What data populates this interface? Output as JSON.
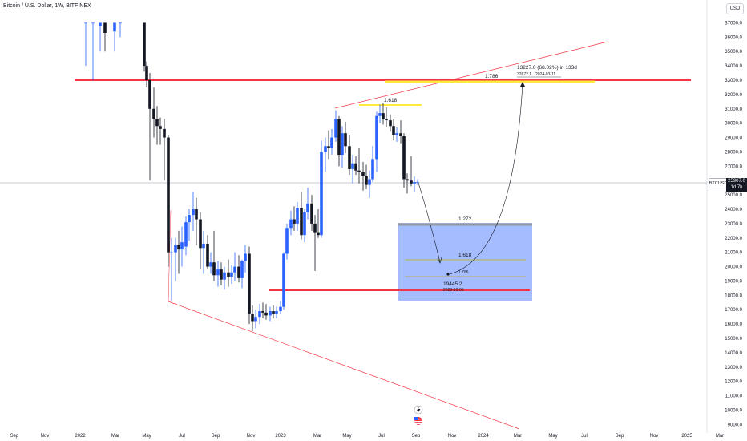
{
  "header": {
    "title": "Bitcoin / U.S. Dollar, 1W, BITFINEX",
    "currency_button": "USD"
  },
  "price_axis": {
    "ticks": [
      37000,
      36000,
      35000,
      34000,
      33000,
      32000,
      31000,
      30000,
      29000,
      28000,
      27000,
      26000,
      25000,
      24000,
      23000,
      22000,
      21000,
      20000,
      19000,
      18000,
      17000,
      16000,
      15000,
      14000,
      13000,
      12000,
      11000,
      10000,
      9000
    ],
    "symbol_tag": "BTCUSD",
    "last_price": "25907.0",
    "countdown": "1d 7h"
  },
  "time_axis": {
    "labels": [
      "Sep",
      "Nov",
      "2022",
      "Mar",
      "May",
      "Jul",
      "Sep",
      "Nov",
      "2023",
      "Mar",
      "May",
      "Jul",
      "Sep",
      "Nov",
      "2024",
      "Mar",
      "May",
      "Jul",
      "Sep",
      "Nov",
      "2025",
      "Mar"
    ]
  },
  "annotations": {
    "fib_1786": "1.786",
    "fib_1618_top": "1.618",
    "fib_1272": "1.272",
    "fib_1618_box": "1.618",
    "fib_1786_box": "1.786",
    "projection_main": "13227.0 (68.02%) in 133d",
    "projection_target": "32672.1",
    "projection_date": "2024-03-11",
    "low_value": "19445.2",
    "low_date": "2023-10-09"
  },
  "colors": {
    "up": "#2962ff",
    "down": "#131722",
    "resistance": "#f23645",
    "channel": "#f23645",
    "fib_yellow": "#ffeb3b",
    "box_fill": "#2962ff",
    "fib_olive": "#b5b54a"
  },
  "chart_data": {
    "type": "candlestick",
    "symbol": "BTCUSD",
    "interval": "1W",
    "exchange": "BITFINEX",
    "ylim": [
      9000,
      37000
    ],
    "x_ticks": [
      "Sep",
      "Nov",
      "2022",
      "Mar",
      "May",
      "Jul",
      "Sep",
      "Nov",
      "2023",
      "Mar",
      "May",
      "Jul",
      "Sep",
      "Nov",
      "2024",
      "Mar",
      "May",
      "Jul",
      "Sep",
      "Nov",
      "2025",
      "Mar"
    ],
    "last_price": 25907.0,
    "candles": [
      {
        "x": 107,
        "o": 37000,
        "h": 37000,
        "l": 34000,
        "c": 37000
      },
      {
        "x": 116,
        "o": 37000,
        "h": 37000,
        "l": 33000,
        "c": 37000
      },
      {
        "x": 125,
        "o": 36800,
        "h": 37000,
        "l": 35000,
        "c": 37000
      },
      {
        "x": 131,
        "o": 37000,
        "h": 37000,
        "l": 35000,
        "c": 36300
      },
      {
        "x": 143,
        "o": 36400,
        "h": 37000,
        "l": 35000,
        "c": 37000
      },
      {
        "x": 150,
        "o": 37000,
        "h": 37000,
        "l": 36000,
        "c": 37000
      },
      {
        "x": 180,
        "o": 37000,
        "h": 37000,
        "l": 33600,
        "c": 34000
      },
      {
        "x": 183,
        "o": 34000,
        "h": 34300,
        "l": 32500,
        "c": 33000
      },
      {
        "x": 187,
        "o": 33000,
        "h": 33500,
        "l": 26000,
        "c": 31000
      },
      {
        "x": 192,
        "o": 31000,
        "h": 32500,
        "l": 29000,
        "c": 30300
      },
      {
        "x": 196,
        "o": 30300,
        "h": 31200,
        "l": 28500,
        "c": 29800
      },
      {
        "x": 200,
        "o": 29800,
        "h": 30400,
        "l": 28500,
        "c": 29600
      },
      {
        "x": 205,
        "o": 29600,
        "h": 30300,
        "l": 26000,
        "c": 29000
      },
      {
        "x": 210,
        "o": 29000,
        "h": 29200,
        "l": 20000,
        "c": 21000
      },
      {
        "x": 214,
        "o": 21000,
        "h": 22000,
        "l": 17600,
        "c": 21000
      },
      {
        "x": 219,
        "o": 21000,
        "h": 22000,
        "l": 19000,
        "c": 21500
      },
      {
        "x": 223,
        "o": 21500,
        "h": 22500,
        "l": 19500,
        "c": 21200
      },
      {
        "x": 227,
        "o": 21200,
        "h": 22800,
        "l": 20000,
        "c": 21700
      },
      {
        "x": 232,
        "o": 21400,
        "h": 23500,
        "l": 20800,
        "c": 23100
      },
      {
        "x": 236,
        "o": 23100,
        "h": 24000,
        "l": 21800,
        "c": 23600
      },
      {
        "x": 241,
        "o": 23600,
        "h": 25200,
        "l": 22500,
        "c": 24000
      },
      {
        "x": 245,
        "o": 24000,
        "h": 24800,
        "l": 21500,
        "c": 23300
      },
      {
        "x": 250,
        "o": 23300,
        "h": 23800,
        "l": 19800,
        "c": 21300
      },
      {
        "x": 254,
        "o": 21300,
        "h": 22500,
        "l": 19500,
        "c": 21600
      },
      {
        "x": 259,
        "o": 21600,
        "h": 22200,
        "l": 19800,
        "c": 20000
      },
      {
        "x": 263,
        "o": 20000,
        "h": 21000,
        "l": 19500,
        "c": 20300
      },
      {
        "x": 267,
        "o": 20300,
        "h": 22500,
        "l": 19000,
        "c": 19400
      },
      {
        "x": 272,
        "o": 19400,
        "h": 20400,
        "l": 18600,
        "c": 19800
      },
      {
        "x": 276,
        "o": 19800,
        "h": 20300,
        "l": 18700,
        "c": 19100
      },
      {
        "x": 280,
        "o": 19100,
        "h": 20000,
        "l": 18400,
        "c": 19600
      },
      {
        "x": 285,
        "o": 19600,
        "h": 20500,
        "l": 18600,
        "c": 19300
      },
      {
        "x": 289,
        "o": 19300,
        "h": 20100,
        "l": 18800,
        "c": 19600
      },
      {
        "x": 293,
        "o": 19600,
        "h": 21000,
        "l": 19000,
        "c": 20000
      },
      {
        "x": 298,
        "o": 20000,
        "h": 20800,
        "l": 18900,
        "c": 19200
      },
      {
        "x": 302,
        "o": 19200,
        "h": 20500,
        "l": 18500,
        "c": 20400
      },
      {
        "x": 306,
        "o": 20400,
        "h": 21500,
        "l": 19600,
        "c": 20900
      },
      {
        "x": 311,
        "o": 20900,
        "h": 21400,
        "l": 16000,
        "c": 16700
      },
      {
        "x": 315,
        "o": 16700,
        "h": 17300,
        "l": 15500,
        "c": 16200
      },
      {
        "x": 319,
        "o": 16200,
        "h": 17000,
        "l": 15700,
        "c": 16500
      },
      {
        "x": 324,
        "o": 16500,
        "h": 17400,
        "l": 16000,
        "c": 16900
      },
      {
        "x": 328,
        "o": 16900,
        "h": 17500,
        "l": 16400,
        "c": 16800
      },
      {
        "x": 332,
        "o": 16800,
        "h": 17400,
        "l": 16300,
        "c": 16600
      },
      {
        "x": 337,
        "o": 16600,
        "h": 17200,
        "l": 16200,
        "c": 16900
      },
      {
        "x": 341,
        "o": 16900,
        "h": 17300,
        "l": 16400,
        "c": 16700
      },
      {
        "x": 345,
        "o": 16700,
        "h": 17200,
        "l": 16400,
        "c": 16900
      },
      {
        "x": 350,
        "o": 16900,
        "h": 17600,
        "l": 16700,
        "c": 17200
      },
      {
        "x": 354,
        "o": 17200,
        "h": 21000,
        "l": 17000,
        "c": 20900
      },
      {
        "x": 358,
        "o": 20900,
        "h": 23000,
        "l": 20500,
        "c": 22700
      },
      {
        "x": 363,
        "o": 22700,
        "h": 23900,
        "l": 22200,
        "c": 23300
      },
      {
        "x": 367,
        "o": 23300,
        "h": 24200,
        "l": 22500,
        "c": 23000
      },
      {
        "x": 371,
        "o": 23000,
        "h": 24500,
        "l": 22500,
        "c": 24100
      },
      {
        "x": 376,
        "o": 24100,
        "h": 25200,
        "l": 21900,
        "c": 22200
      },
      {
        "x": 380,
        "o": 22200,
        "h": 24000,
        "l": 21700,
        "c": 23800
      },
      {
        "x": 384,
        "o": 23800,
        "h": 25500,
        "l": 23300,
        "c": 24400
      },
      {
        "x": 389,
        "o": 24400,
        "h": 25000,
        "l": 22500,
        "c": 23000
      },
      {
        "x": 393,
        "o": 23000,
        "h": 23600,
        "l": 19700,
        "c": 22400
      },
      {
        "x": 397,
        "o": 22400,
        "h": 24000,
        "l": 22000,
        "c": 22200
      },
      {
        "x": 401,
        "o": 22200,
        "h": 28800,
        "l": 22000,
        "c": 28000
      },
      {
        "x": 406,
        "o": 28000,
        "h": 29000,
        "l": 26600,
        "c": 28400
      },
      {
        "x": 410,
        "o": 28400,
        "h": 29500,
        "l": 27500,
        "c": 28300
      },
      {
        "x": 414,
        "o": 28300,
        "h": 29600,
        "l": 27800,
        "c": 29000
      },
      {
        "x": 419,
        "o": 29000,
        "h": 30900,
        "l": 28700,
        "c": 30300
      },
      {
        "x": 423,
        "o": 30300,
        "h": 30500,
        "l": 27000,
        "c": 27800
      },
      {
        "x": 427,
        "o": 27800,
        "h": 29800,
        "l": 26900,
        "c": 29300
      },
      {
        "x": 431,
        "o": 29300,
        "h": 30100,
        "l": 27900,
        "c": 28400
      },
      {
        "x": 436,
        "o": 28400,
        "h": 29200,
        "l": 26400,
        "c": 26800
      },
      {
        "x": 440,
        "o": 26800,
        "h": 27800,
        "l": 25800,
        "c": 27200
      },
      {
        "x": 444,
        "o": 27200,
        "h": 27700,
        "l": 26400,
        "c": 26700
      },
      {
        "x": 448,
        "o": 26700,
        "h": 28300,
        "l": 25800,
        "c": 26600
      },
      {
        "x": 453,
        "o": 26600,
        "h": 27300,
        "l": 25300,
        "c": 26300
      },
      {
        "x": 457,
        "o": 26300,
        "h": 27100,
        "l": 25400,
        "c": 25700
      },
      {
        "x": 461,
        "o": 25700,
        "h": 26700,
        "l": 24800,
        "c": 26100
      },
      {
        "x": 465,
        "o": 26100,
        "h": 28400,
        "l": 25900,
        "c": 27500
      },
      {
        "x": 470,
        "o": 27500,
        "h": 30800,
        "l": 26600,
        "c": 30500
      },
      {
        "x": 474,
        "o": 30500,
        "h": 31300,
        "l": 30000,
        "c": 30700
      },
      {
        "x": 478,
        "o": 30700,
        "h": 31400,
        "l": 29900,
        "c": 30300
      },
      {
        "x": 482,
        "o": 30300,
        "h": 31100,
        "l": 29700,
        "c": 30200
      },
      {
        "x": 487,
        "o": 30200,
        "h": 30600,
        "l": 29400,
        "c": 29800
      },
      {
        "x": 491,
        "o": 29800,
        "h": 30300,
        "l": 28800,
        "c": 29200
      },
      {
        "x": 495,
        "o": 29200,
        "h": 29700,
        "l": 28700,
        "c": 29300
      },
      {
        "x": 500,
        "o": 29300,
        "h": 30200,
        "l": 28600,
        "c": 29100
      },
      {
        "x": 504,
        "o": 29100,
        "h": 29300,
        "l": 25500,
        "c": 26100
      },
      {
        "x": 508,
        "o": 26100,
        "h": 26500,
        "l": 25100,
        "c": 26000
      },
      {
        "x": 513,
        "o": 26000,
        "h": 27700,
        "l": 25600,
        "c": 25800
      },
      {
        "x": 517,
        "o": 25800,
        "h": 26300,
        "l": 25200,
        "c": 25900
      },
      {
        "x": 521,
        "o": 25900,
        "h": 26100,
        "l": 25700,
        "c": 25907
      }
    ]
  }
}
